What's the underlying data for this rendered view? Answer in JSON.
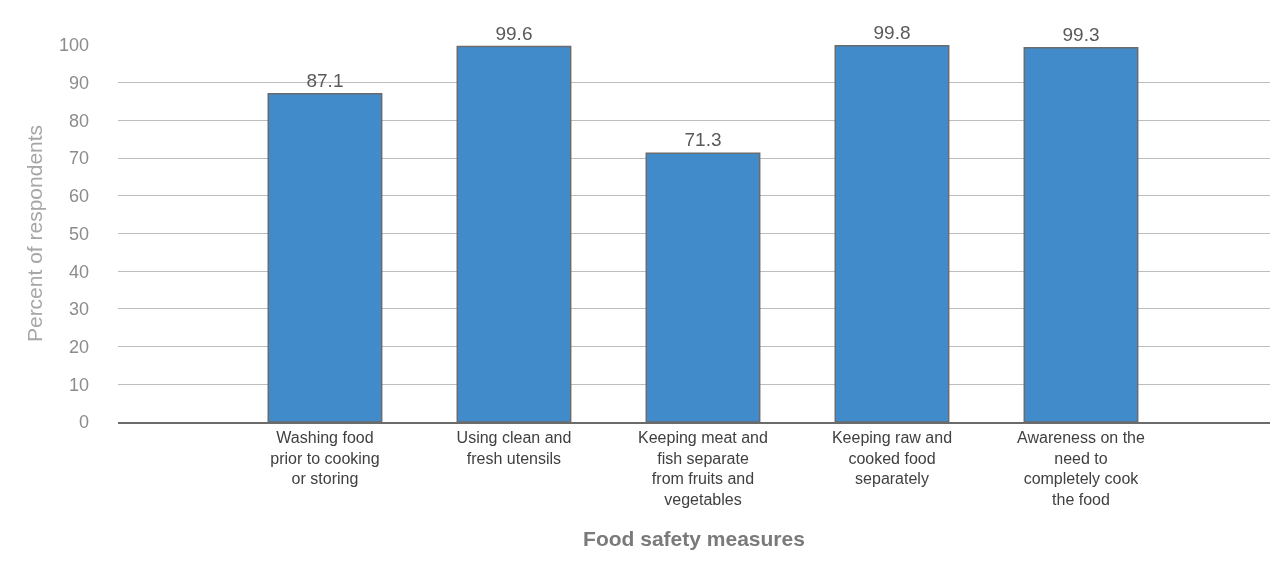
{
  "chart_data": {
    "type": "bar",
    "xlabel": "Food safety measures",
    "ylabel": "Percent of respondents",
    "categories": [
      "Washing food prior to cooking or storing",
      "Using clean and fresh utensils",
      "Keeping meat and fish separate from fruits and vegetables",
      "Keeping raw and cooked food separately",
      "Awareness on the need to completely cook the food"
    ],
    "values": [
      87.1,
      99.6,
      71.3,
      99.8,
      99.3
    ],
    "color": "#428bcb",
    "ylim": [
      0,
      100
    ],
    "yticks": [
      0,
      10,
      20,
      30,
      40,
      50,
      60,
      70,
      80,
      90,
      100
    ],
    "grid": "y",
    "data_labels": true,
    "legend": false
  }
}
